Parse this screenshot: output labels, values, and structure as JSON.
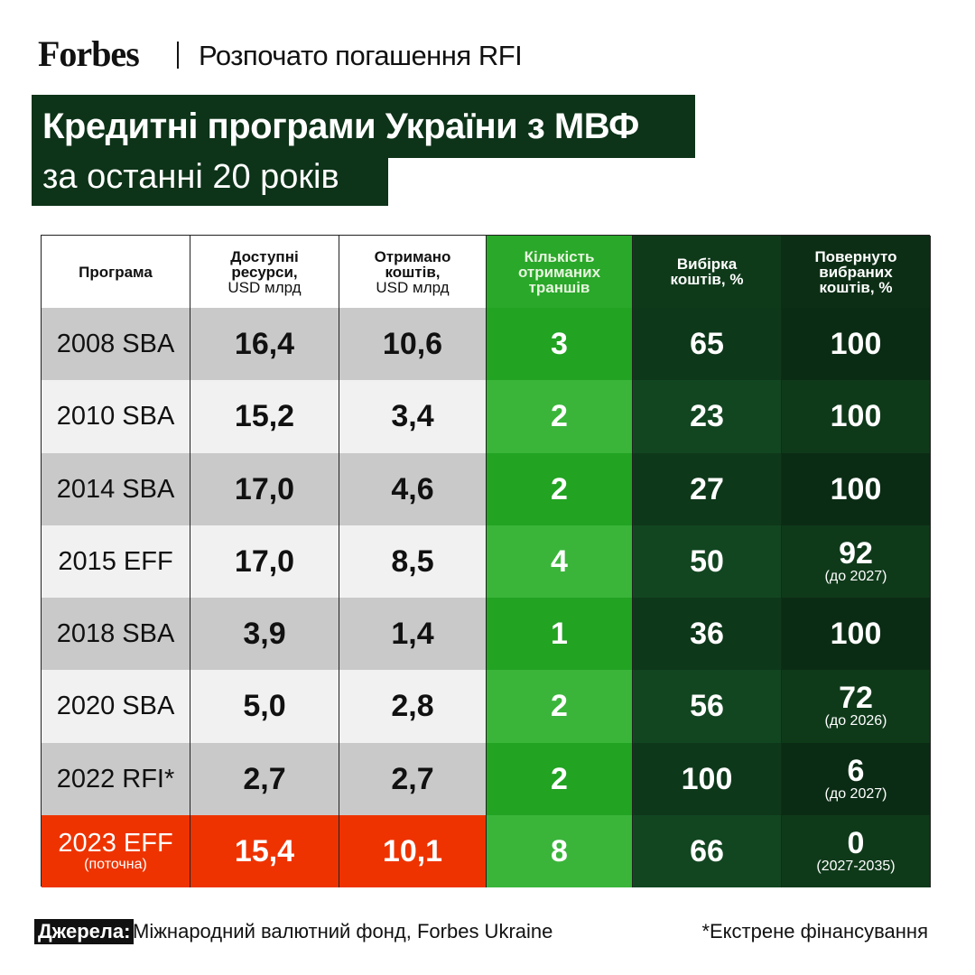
{
  "header": {
    "logo": "Forbes",
    "subtitle": "Розпочато погашення RFI"
  },
  "title": {
    "line1": "Кредитні програми України з МВФ",
    "line2": "за останні 20 років"
  },
  "table": {
    "columns": [
      {
        "lines": [
          "Програма"
        ]
      },
      {
        "lines": [
          "Доступні",
          "ресурси,"
        ],
        "unit": "USD млрд"
      },
      {
        "lines": [
          "Отримано",
          "коштів,"
        ],
        "unit": "USD млрд"
      },
      {
        "lines": [
          "Кількість",
          "отриманих",
          "траншів"
        ]
      },
      {
        "lines": [
          "Вибірка",
          "коштів, %"
        ]
      },
      {
        "lines": [
          "Повернуто",
          "вибраних",
          "коштів, %"
        ]
      }
    ],
    "rows": [
      {
        "cells": [
          "2008 SBA",
          "16,4",
          "10,6",
          "3",
          "65",
          "100"
        ]
      },
      {
        "cells": [
          "2010 SBA",
          "15,2",
          "3,4",
          "2",
          "23",
          "100"
        ]
      },
      {
        "cells": [
          "2014 SBA",
          "17,0",
          "4,6",
          "2",
          "27",
          "100"
        ]
      },
      {
        "cells": [
          "2015 EFF",
          "17,0",
          "8,5",
          "4",
          "50",
          "92"
        ],
        "repaid_note": "(до 2027)"
      },
      {
        "cells": [
          "2018 SBA",
          "3,9",
          "1,4",
          "1",
          "36",
          "100"
        ]
      },
      {
        "cells": [
          "2020 SBA",
          "5,0",
          "2,8",
          "2",
          "56",
          "72"
        ],
        "repaid_note": "(до 2026)"
      },
      {
        "cells": [
          "2022 RFI*",
          "2,7",
          "2,7",
          "2",
          "100",
          "6"
        ],
        "repaid_note": "(до 2027)"
      },
      {
        "cells": [
          "2023 EFF",
          "15,4",
          "10,1",
          "8",
          "66",
          "0"
        ],
        "program_note": "(поточна)",
        "repaid_note": "(2027-2035)",
        "highlight": true
      }
    ]
  },
  "footer": {
    "sources_label": "Джерела:",
    "sources": "Міжнародний валютний фонд, Forbes Ukraine",
    "footnote": "*Екстрене фінансування"
  }
}
